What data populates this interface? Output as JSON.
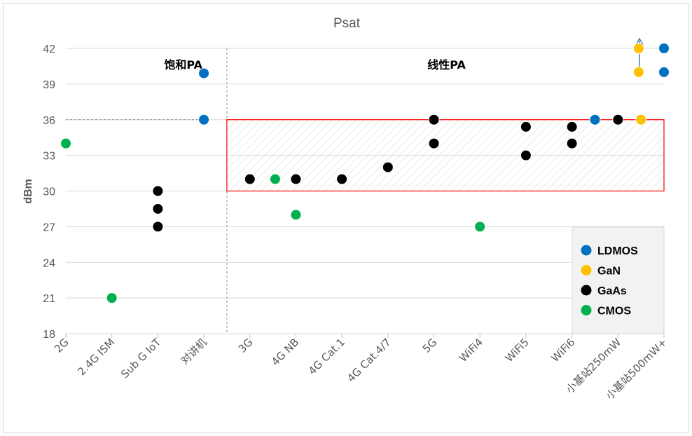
{
  "chart_data": {
    "type": "scatter",
    "title": "Psat",
    "ylabel": "dBm",
    "xlabel": "",
    "ylim": [
      18,
      42
    ],
    "yticks": [
      18,
      21,
      24,
      27,
      30,
      33,
      36,
      39,
      42
    ],
    "grid": "horizontal",
    "legend_position": "bottom-right",
    "categories": [
      "2G",
      "2.4G ISM",
      "Sub G IoT",
      "对讲机",
      "3G",
      "4G NB",
      "4G Cat.1",
      "4G Cat.4/7",
      "5G",
      "WiFi4",
      "WiFi5",
      "WiFi6",
      "小基站250mW",
      "小基站500mW+"
    ],
    "region_labels": [
      "饱和PA",
      "线性PA"
    ],
    "highlight_box": {
      "y_range": [
        30,
        36
      ],
      "from_category": "3G",
      "to_category": "小基站500mW+"
    },
    "series": [
      {
        "name": "LDMOS",
        "color": "#0070C0",
        "points": [
          {
            "category": "对讲机",
            "y": 39.9
          },
          {
            "category": "对讲机",
            "y": 36
          },
          {
            "category": "小基站250mW",
            "y": 36,
            "offset": -0.5
          },
          {
            "category": "小基站500mW+",
            "y": 42
          },
          {
            "category": "小基站500mW+",
            "y": 40
          }
        ]
      },
      {
        "name": "GaN",
        "color": "#FFC000",
        "points": [
          {
            "category": "小基站250mW",
            "y": 36,
            "offset": 0.5
          },
          {
            "category": "小基站500mW+",
            "y": 42,
            "offset": -0.55
          },
          {
            "category": "小基站500mW+",
            "y": 40,
            "offset": -0.55
          }
        ]
      },
      {
        "name": "GaAs",
        "color": "#000000",
        "points": [
          {
            "category": "Sub G IoT",
            "y": 30
          },
          {
            "category": "Sub G IoT",
            "y": 28.5
          },
          {
            "category": "Sub G IoT",
            "y": 27
          },
          {
            "category": "3G",
            "y": 31
          },
          {
            "category": "4G NB",
            "y": 31
          },
          {
            "category": "4G Cat.1",
            "y": 31
          },
          {
            "category": "4G Cat.4/7",
            "y": 32
          },
          {
            "category": "5G",
            "y": 36
          },
          {
            "category": "5G",
            "y": 34
          },
          {
            "category": "WiFi5",
            "y": 35.4
          },
          {
            "category": "WiFi5",
            "y": 33
          },
          {
            "category": "WiFi6",
            "y": 35.4
          },
          {
            "category": "WiFi6",
            "y": 34
          },
          {
            "category": "小基站250mW",
            "y": 36
          }
        ]
      },
      {
        "name": "CMOS",
        "color": "#00B050",
        "points": [
          {
            "category": "2G",
            "y": 34
          },
          {
            "category": "2.4G ISM",
            "y": 21
          },
          {
            "category": "3G",
            "y": 31,
            "offset": 0.55
          },
          {
            "category": "4G NB",
            "y": 28
          },
          {
            "category": "WiFi4",
            "y": 27
          }
        ]
      }
    ]
  }
}
